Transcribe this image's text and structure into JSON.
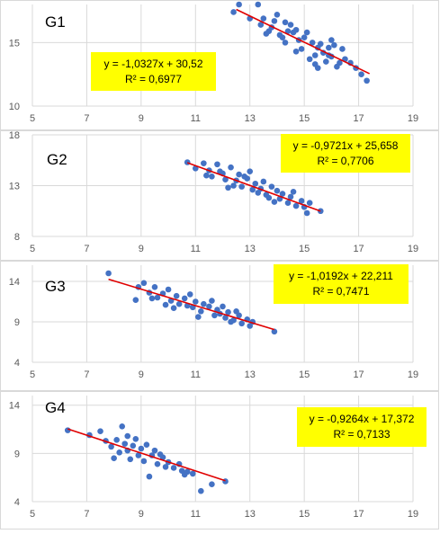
{
  "colors": {
    "points": "#4472c4",
    "trend": "#e00000",
    "eq_box": "#ffff00",
    "grid": "#d9d9d9"
  },
  "chart_data": [
    {
      "type": "scatter",
      "label": "G1",
      "xlim": [
        5,
        19
      ],
      "ylim": [
        10,
        18
      ],
      "xticks": [
        "5",
        "7",
        "9",
        "11",
        "13",
        "15",
        "17",
        "19"
      ],
      "yticks": [
        "10",
        "15"
      ],
      "equation": "y = -1,0327x + 30,52",
      "r2": "R² = 0,6977",
      "trendline": {
        "slope": -1.0327,
        "intercept": 30.52,
        "x_range": [
          12.5,
          17.4
        ]
      },
      "points": [
        [
          12.6,
          18.0
        ],
        [
          13.3,
          18.0
        ],
        [
          12.4,
          17.4
        ],
        [
          13.0,
          16.9
        ],
        [
          13.5,
          16.9
        ],
        [
          14.0,
          17.2
        ],
        [
          14.3,
          16.6
        ],
        [
          13.4,
          16.4
        ],
        [
          13.8,
          16.2
        ],
        [
          14.5,
          16.4
        ],
        [
          13.6,
          15.7
        ],
        [
          14.1,
          15.6
        ],
        [
          14.7,
          16.0
        ],
        [
          15.0,
          15.4
        ],
        [
          14.3,
          15.0
        ],
        [
          14.8,
          15.2
        ],
        [
          15.3,
          15.0
        ],
        [
          15.5,
          14.6
        ],
        [
          15.9,
          14.6
        ],
        [
          14.9,
          14.5
        ],
        [
          15.4,
          14.0
        ],
        [
          15.7,
          14.2
        ],
        [
          16.0,
          13.9
        ],
        [
          16.3,
          13.4
        ],
        [
          15.2,
          13.7
        ],
        [
          15.8,
          13.5
        ],
        [
          16.5,
          13.7
        ],
        [
          16.9,
          13.0
        ],
        [
          17.1,
          12.5
        ],
        [
          17.3,
          12.0
        ],
        [
          15.6,
          14.9
        ],
        [
          16.0,
          15.2
        ],
        [
          16.4,
          14.5
        ],
        [
          14.6,
          15.8
        ],
        [
          13.9,
          16.7
        ],
        [
          16.2,
          13.1
        ],
        [
          15.5,
          13.0
        ],
        [
          14.7,
          14.3
        ],
        [
          14.2,
          15.4
        ],
        [
          15.1,
          15.8
        ],
        [
          15.4,
          13.3
        ],
        [
          16.1,
          14.8
        ],
        [
          13.7,
          15.9
        ],
        [
          15.9,
          14.0
        ],
        [
          14.4,
          15.9
        ],
        [
          16.7,
          13.4
        ]
      ]
    },
    {
      "type": "scatter",
      "label": "G2",
      "xlim": [
        5,
        19
      ],
      "ylim": [
        8,
        18
      ],
      "xticks": [
        "5",
        "7",
        "9",
        "11",
        "13",
        "15",
        "17",
        "19"
      ],
      "yticks": [
        "8",
        "13",
        "18"
      ],
      "equation": "y = -0,9721x + 25,658",
      "r2": "R² = 0,7706",
      "trendline": {
        "slope": -0.9721,
        "intercept": 25.658,
        "x_range": [
          10.7,
          15.6
        ]
      },
      "points": [
        [
          10.7,
          15.3
        ],
        [
          11.0,
          14.7
        ],
        [
          11.3,
          15.2
        ],
        [
          11.5,
          14.5
        ],
        [
          11.6,
          13.9
        ],
        [
          11.8,
          15.1
        ],
        [
          12.0,
          14.2
        ],
        [
          12.1,
          13.6
        ],
        [
          12.3,
          14.8
        ],
        [
          12.5,
          13.5
        ],
        [
          12.6,
          14.1
        ],
        [
          12.7,
          12.9
        ],
        [
          12.9,
          13.7
        ],
        [
          13.0,
          14.4
        ],
        [
          13.1,
          12.6
        ],
        [
          13.2,
          13.2
        ],
        [
          13.4,
          12.7
        ],
        [
          13.5,
          13.4
        ],
        [
          13.6,
          12.1
        ],
        [
          13.7,
          11.8
        ],
        [
          13.8,
          12.9
        ],
        [
          14.0,
          12.5
        ],
        [
          14.1,
          11.7
        ],
        [
          14.2,
          12.2
        ],
        [
          14.4,
          11.3
        ],
        [
          14.5,
          11.9
        ],
        [
          14.7,
          11.0
        ],
        [
          14.9,
          11.5
        ],
        [
          15.0,
          10.9
        ],
        [
          15.1,
          10.3
        ],
        [
          15.2,
          11.3
        ],
        [
          15.6,
          10.5
        ],
        [
          11.9,
          14.4
        ],
        [
          12.4,
          13.0
        ],
        [
          12.8,
          13.9
        ],
        [
          13.3,
          12.3
        ],
        [
          13.9,
          11.4
        ],
        [
          12.2,
          12.8
        ],
        [
          14.6,
          12.4
        ],
        [
          11.4,
          14.0
        ]
      ]
    },
    {
      "type": "scatter",
      "label": "G3",
      "xlim": [
        5,
        19
      ],
      "ylim": [
        4,
        16
      ],
      "xticks": [
        "5",
        "7",
        "9",
        "11",
        "13",
        "15",
        "17",
        "19"
      ],
      "yticks": [
        "4",
        "9",
        "14"
      ],
      "equation": "y = -1,0192x + 22,211",
      "r2": "R² = 0,7471",
      "trendline": {
        "slope": -1.0192,
        "intercept": 22.211,
        "x_range": [
          7.8,
          13.9
        ]
      },
      "points": [
        [
          7.8,
          15.0
        ],
        [
          8.8,
          11.7
        ],
        [
          8.9,
          13.3
        ],
        [
          9.1,
          13.8
        ],
        [
          9.3,
          12.6
        ],
        [
          9.5,
          13.3
        ],
        [
          9.6,
          12.0
        ],
        [
          9.8,
          12.5
        ],
        [
          10.0,
          13.0
        ],
        [
          10.1,
          11.6
        ],
        [
          10.3,
          12.2
        ],
        [
          10.4,
          11.2
        ],
        [
          10.6,
          11.9
        ],
        [
          10.8,
          12.4
        ],
        [
          10.9,
          10.8
        ],
        [
          11.0,
          11.5
        ],
        [
          11.2,
          10.3
        ],
        [
          11.3,
          11.2
        ],
        [
          11.5,
          10.9
        ],
        [
          11.7,
          9.8
        ],
        [
          11.8,
          10.5
        ],
        [
          12.0,
          10.9
        ],
        [
          12.1,
          9.5
        ],
        [
          12.2,
          10.2
        ],
        [
          12.4,
          9.2
        ],
        [
          12.6,
          9.8
        ],
        [
          12.7,
          8.8
        ],
        [
          12.9,
          9.3
        ],
        [
          13.1,
          9.0
        ],
        [
          13.9,
          7.8
        ],
        [
          10.2,
          10.7
        ],
        [
          9.9,
          11.1
        ],
        [
          11.6,
          11.6
        ],
        [
          12.3,
          9.0
        ],
        [
          10.7,
          11.0
        ],
        [
          9.4,
          11.9
        ],
        [
          11.1,
          9.6
        ],
        [
          12.5,
          10.3
        ],
        [
          13.0,
          8.5
        ],
        [
          11.9,
          10.0
        ]
      ]
    },
    {
      "type": "scatter",
      "label": "G4",
      "xlim": [
        5,
        19
      ],
      "ylim": [
        4,
        15
      ],
      "xticks": [
        "5",
        "7",
        "9",
        "11",
        "13",
        "15",
        "17",
        "19"
      ],
      "yticks": [
        "4",
        "9",
        "14"
      ],
      "equation": "y = -0,9264x + 17,372",
      "r2": "R² = 0,7133",
      "trendline": {
        "slope": -0.9264,
        "intercept": 17.372,
        "x_range": [
          6.3,
          12.1
        ]
      },
      "points": [
        [
          6.3,
          11.4
        ],
        [
          7.1,
          10.9
        ],
        [
          7.5,
          11.3
        ],
        [
          7.7,
          10.3
        ],
        [
          7.9,
          9.7
        ],
        [
          8.1,
          10.4
        ],
        [
          8.2,
          9.1
        ],
        [
          8.3,
          11.8
        ],
        [
          8.4,
          10.0
        ],
        [
          8.5,
          9.3
        ],
        [
          8.6,
          8.4
        ],
        [
          8.7,
          9.8
        ],
        [
          8.8,
          10.5
        ],
        [
          8.9,
          8.8
        ],
        [
          9.0,
          9.5
        ],
        [
          9.1,
          8.2
        ],
        [
          9.2,
          9.9
        ],
        [
          9.3,
          6.6
        ],
        [
          9.4,
          8.8
        ],
        [
          9.5,
          9.3
        ],
        [
          9.6,
          7.9
        ],
        [
          9.8,
          8.6
        ],
        [
          9.9,
          7.6
        ],
        [
          10.0,
          8.1
        ],
        [
          10.2,
          7.5
        ],
        [
          10.4,
          7.9
        ],
        [
          10.5,
          7.2
        ],
        [
          10.7,
          7.1
        ],
        [
          10.9,
          6.9
        ],
        [
          11.2,
          5.1
        ],
        [
          11.6,
          5.8
        ],
        [
          12.1,
          6.1
        ],
        [
          8.0,
          8.5
        ],
        [
          9.7,
          8.9
        ],
        [
          10.6,
          6.8
        ],
        [
          8.5,
          10.8
        ]
      ]
    }
  ]
}
